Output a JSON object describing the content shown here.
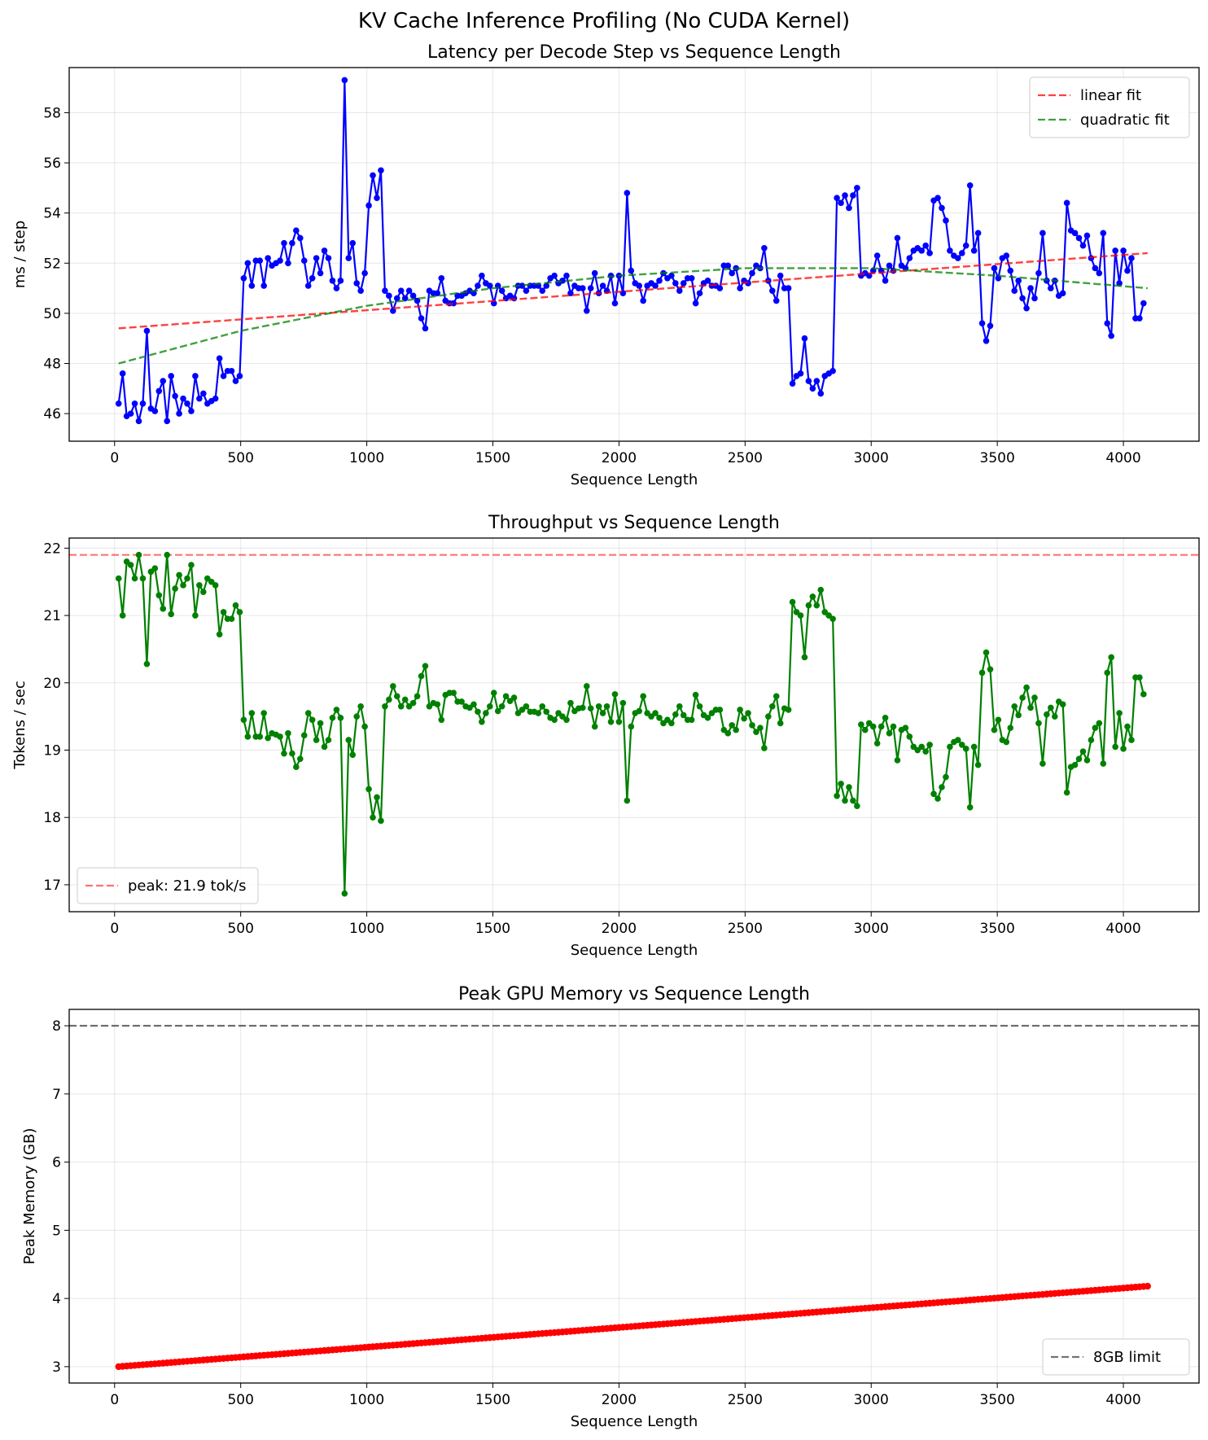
{
  "figure_title": "KV Cache Inference Profiling (No CUDA Kernel)",
  "colors": {
    "latency": "#0000ff",
    "linear_fit": "#ff0000",
    "quadratic_fit": "#008000",
    "throughput": "#008000",
    "peak_line": "#ff0000",
    "memory": "#ff0000",
    "limit_line": "#000000"
  },
  "chart_data": [
    {
      "type": "line",
      "title": "Latency per Decode Step vs Sequence Length",
      "xlabel": "Sequence Length",
      "ylabel": "ms / step",
      "xlim": [
        -180,
        4300
      ],
      "ylim": [
        44.9,
        59.8
      ],
      "xticks": [
        0,
        500,
        1000,
        1500,
        2000,
        2500,
        3000,
        3500,
        4000
      ],
      "yticks": [
        46,
        48,
        50,
        52,
        54,
        56,
        58
      ],
      "grid": true,
      "legend": "top-right",
      "x": {
        "start": 16,
        "end": 4096,
        "step": 16
      },
      "series": [
        {
          "values": [
            46.4,
            47.6,
            45.9,
            46.0,
            46.4,
            45.7,
            46.4,
            49.3,
            46.2,
            46.1,
            46.9,
            47.3,
            45.7,
            47.5,
            46.7,
            46.0,
            46.6,
            46.4,
            46.1,
            47.5,
            46.6,
            46.8,
            46.4,
            46.5,
            46.6,
            48.2,
            47.5,
            47.7,
            47.7,
            47.3,
            47.5,
            51.4,
            52.0,
            51.1,
            52.1,
            52.1,
            51.1,
            52.2,
            51.9,
            52.0,
            52.1,
            52.8,
            52.0,
            52.8,
            53.3,
            53.0,
            52.1,
            51.1,
            51.4,
            52.2,
            51.6,
            52.5,
            52.2,
            51.3,
            51.0,
            51.3,
            59.3,
            52.2,
            52.8,
            51.2,
            50.9,
            51.6,
            54.3,
            55.5,
            54.6,
            55.7,
            50.9,
            50.7,
            50.1,
            50.6,
            50.9,
            50.6,
            50.9,
            50.7,
            50.5,
            49.8,
            49.4,
            50.9,
            50.8,
            50.8,
            51.4,
            50.5,
            50.4,
            50.4,
            50.7,
            50.7,
            50.8,
            50.9,
            50.8,
            51.1,
            51.5,
            51.2,
            51.1,
            50.4,
            51.1,
            50.9,
            50.6,
            50.7,
            50.6,
            51.1,
            51.1,
            50.9,
            51.1,
            51.1,
            51.1,
            50.9,
            51.1,
            51.4,
            51.5,
            51.2,
            51.3,
            51.5,
            50.8,
            51.1,
            51.0,
            51.0,
            50.1,
            51.0,
            51.6,
            50.8,
            51.1,
            50.9,
            51.5,
            50.4,
            51.5,
            50.8,
            54.8,
            51.7,
            51.2,
            51.1,
            50.5,
            51.1,
            51.2,
            51.1,
            51.3,
            51.6,
            51.4,
            51.5,
            51.2,
            50.9,
            51.2,
            51.4,
            51.4,
            50.4,
            50.8,
            51.2,
            51.3,
            51.1,
            51.1,
            51.0,
            51.9,
            51.9,
            51.6,
            51.8,
            51.0,
            51.3,
            51.2,
            51.6,
            51.9,
            51.8,
            52.6,
            51.3,
            50.9,
            50.5,
            51.5,
            51.0,
            51.0,
            47.2,
            47.5,
            47.6,
            49.0,
            47.3,
            47.0,
            47.3,
            46.8,
            47.5,
            47.6,
            47.7,
            54.6,
            54.4,
            54.7,
            54.2,
            54.7,
            55.0,
            51.5,
            51.6,
            51.5,
            51.7,
            52.3,
            51.7,
            51.3,
            51.9,
            51.7,
            53.0,
            51.9,
            51.8,
            52.2,
            52.5,
            52.6,
            52.5,
            52.7,
            52.4,
            54.5,
            54.6,
            54.2,
            53.7,
            52.5,
            52.3,
            52.2,
            52.4,
            52.7,
            55.1,
            52.5,
            53.2,
            49.6,
            48.9,
            49.5,
            51.8,
            51.4,
            52.2,
            52.3,
            51.7,
            50.9,
            51.3,
            50.6,
            50.2,
            51.0,
            50.6,
            51.6,
            53.2,
            51.3,
            51.0,
            51.3,
            50.7,
            50.8,
            54.4,
            53.3,
            53.2,
            53.0,
            52.7,
            53.1,
            52.2,
            51.8,
            51.6,
            53.2,
            49.6,
            49.1,
            52.5,
            51.2,
            52.5,
            51.7,
            52.2,
            49.8,
            49.8,
            50.4
          ]
        },
        {
          "name": "linear fit",
          "style": "dashed",
          "from": [
            16,
            49.4
          ],
          "to": [
            4096,
            52.4
          ]
        },
        {
          "name": "quadratic fit",
          "style": "dashed",
          "points": [
            [
              16,
              48.0
            ],
            [
              500,
              49.3
            ],
            [
              1000,
              50.3
            ],
            [
              1500,
              51.0
            ],
            [
              2000,
              51.5
            ],
            [
              2500,
              51.8
            ],
            [
              3000,
              51.8
            ],
            [
              3500,
              51.5
            ],
            [
              4096,
              51.0
            ]
          ]
        }
      ]
    },
    {
      "type": "line",
      "title": "Throughput vs Sequence Length",
      "xlabel": "Sequence Length",
      "ylabel": "Tokens / sec",
      "xlim": [
        -180,
        4300
      ],
      "ylim": [
        16.6,
        22.15
      ],
      "xticks": [
        0,
        500,
        1000,
        1500,
        2000,
        2500,
        3000,
        3500,
        4000
      ],
      "yticks": [
        17,
        18,
        19,
        20,
        21,
        22
      ],
      "grid": true,
      "legend": "bottom-left",
      "x": {
        "start": 16,
        "end": 4096,
        "step": 16
      },
      "series": [
        {
          "values": [
            21.55,
            21.0,
            21.8,
            21.75,
            21.55,
            21.9,
            21.55,
            20.28,
            21.65,
            21.7,
            21.3,
            21.1,
            21.9,
            21.02,
            21.4,
            21.6,
            21.45,
            21.55,
            21.75,
            21.0,
            21.45,
            21.35,
            21.55,
            21.5,
            21.45,
            20.72,
            21.05,
            20.95,
            20.95,
            21.15,
            21.05,
            19.45,
            19.2,
            19.55,
            19.2,
            19.2,
            19.55,
            19.18,
            19.25,
            19.23,
            19.2,
            18.95,
            19.25,
            18.95,
            18.75,
            18.87,
            19.22,
            19.55,
            19.45,
            19.15,
            19.4,
            19.05,
            19.15,
            19.48,
            19.6,
            19.48,
            16.87,
            19.15,
            18.93,
            19.5,
            19.65,
            19.35,
            18.42,
            18.0,
            18.3,
            17.95,
            19.65,
            19.75,
            19.95,
            19.8,
            19.65,
            19.75,
            19.65,
            19.7,
            19.8,
            20.1,
            20.25,
            19.65,
            19.7,
            19.68,
            19.45,
            19.82,
            19.85,
            19.85,
            19.72,
            19.72,
            19.65,
            19.63,
            19.68,
            19.57,
            19.42,
            19.55,
            19.65,
            19.85,
            19.58,
            19.65,
            19.8,
            19.73,
            19.78,
            19.55,
            19.6,
            19.65,
            19.57,
            19.57,
            19.55,
            19.65,
            19.57,
            19.48,
            19.45,
            19.55,
            19.5,
            19.45,
            19.7,
            19.58,
            19.62,
            19.63,
            19.95,
            19.62,
            19.35,
            19.65,
            19.55,
            19.65,
            19.42,
            19.83,
            19.42,
            19.7,
            18.25,
            19.35,
            19.55,
            19.58,
            19.8,
            19.55,
            19.5,
            19.55,
            19.48,
            19.4,
            19.45,
            19.4,
            19.53,
            19.65,
            19.52,
            19.45,
            19.45,
            19.82,
            19.65,
            19.52,
            19.48,
            19.55,
            19.6,
            19.6,
            19.3,
            19.25,
            19.37,
            19.3,
            19.6,
            19.47,
            19.55,
            19.37,
            19.27,
            19.33,
            19.03,
            19.5,
            19.65,
            19.8,
            19.4,
            19.62,
            19.6,
            21.2,
            21.05,
            21.0,
            20.38,
            21.15,
            21.28,
            21.15,
            21.38,
            21.05,
            21.0,
            20.95,
            18.32,
            18.5,
            18.25,
            18.45,
            18.25,
            18.17,
            19.38,
            19.3,
            19.4,
            19.35,
            19.1,
            19.35,
            19.48,
            19.25,
            19.35,
            18.85,
            19.3,
            19.33,
            19.2,
            19.05,
            19.0,
            19.05,
            18.98,
            19.08,
            18.35,
            18.28,
            18.45,
            18.6,
            19.05,
            19.12,
            19.15,
            19.08,
            19.02,
            18.15,
            19.05,
            18.78,
            20.15,
            20.45,
            20.2,
            19.3,
            19.45,
            19.15,
            19.12,
            19.33,
            19.65,
            19.52,
            19.78,
            19.93,
            19.63,
            19.78,
            19.4,
            18.8,
            19.53,
            19.63,
            19.5,
            19.72,
            19.68,
            18.37,
            18.75,
            18.78,
            18.87,
            18.98,
            18.85,
            19.15,
            19.33,
            19.4,
            18.8,
            20.15,
            20.38,
            19.05,
            19.55,
            19.02,
            19.35,
            19.15,
            20.08,
            20.08,
            19.83
          ]
        },
        {
          "name": "peak: 21.9 tok/s",
          "style": "dashed",
          "y": 21.9
        }
      ]
    },
    {
      "type": "scatter",
      "title": "Peak GPU Memory vs Sequence Length",
      "xlabel": "Sequence Length",
      "ylabel": "Peak Memory (GB)",
      "xlim": [
        -180,
        4300
      ],
      "ylim": [
        2.76,
        8.24
      ],
      "xticks": [
        0,
        500,
        1000,
        1500,
        2000,
        2500,
        3000,
        3500,
        4000
      ],
      "yticks": [
        3,
        4,
        5,
        6,
        7,
        8
      ],
      "grid": true,
      "legend": "bottom-right",
      "series": [
        {
          "x_start": 16,
          "x_end": 4096,
          "step": 16,
          "y_start": 3.0,
          "y_end": 4.18
        },
        {
          "name": "8GB limit",
          "style": "dashed",
          "y": 8
        }
      ]
    }
  ]
}
